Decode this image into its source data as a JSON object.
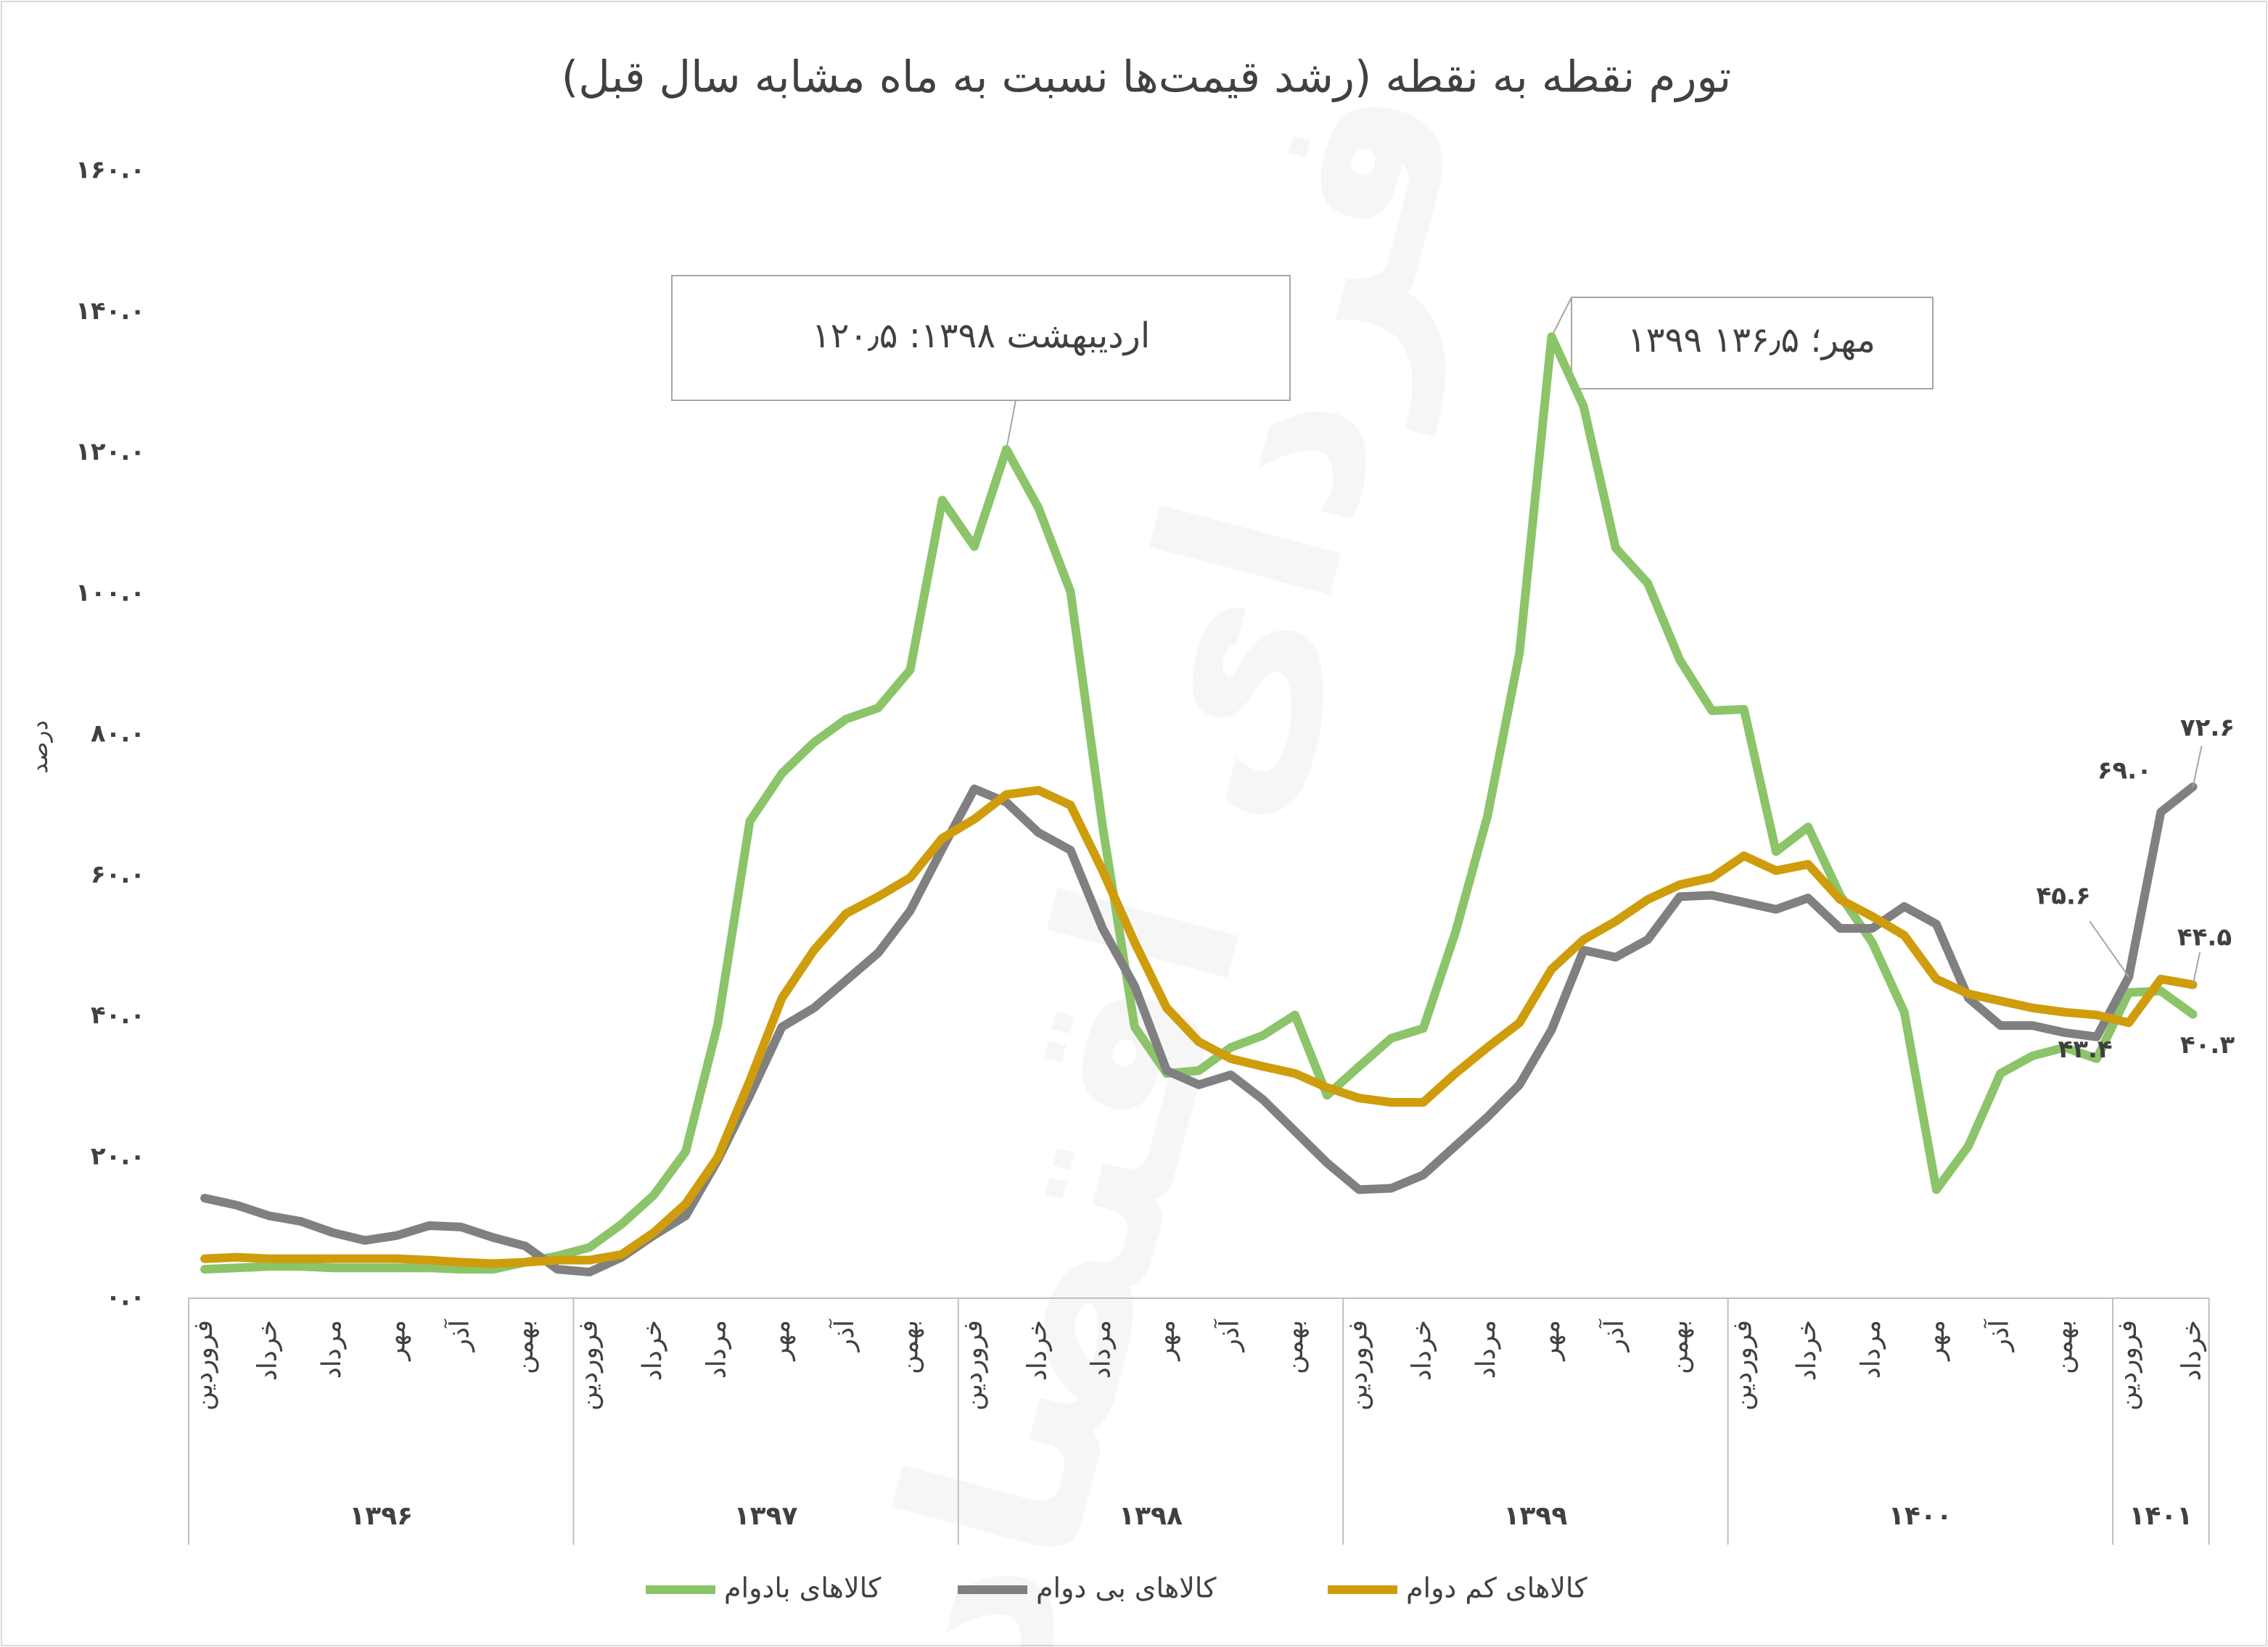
{
  "chart_data": {
    "type": "line",
    "title": "تورم نقطه به نقطه (رشد قیمت‌ها نسبت به ماه مشابه سال قبل)",
    "y_label": "درصد",
    "watermark": "فردای اقتصاد",
    "ylim": [
      0,
      160
    ],
    "yticks": [
      {
        "value": 0,
        "label": "۰.۰"
      },
      {
        "value": 20,
        "label": "۲۰.۰"
      },
      {
        "value": 40,
        "label": "۴۰.۰"
      },
      {
        "value": 60,
        "label": "۶۰.۰"
      },
      {
        "value": 80,
        "label": "۸۰.۰"
      },
      {
        "value": 100,
        "label": "۱۰۰.۰"
      },
      {
        "value": 120,
        "label": "۱۲۰.۰"
      },
      {
        "value": 140,
        "label": "۱۴۰.۰"
      },
      {
        "value": 160,
        "label": "۱۶۰.۰"
      }
    ],
    "grid": false,
    "legend": "bottom",
    "years": [
      "۱۳۹۶",
      "۱۳۹۷",
      "۱۳۹۸",
      "۱۳۹۹",
      "۱۴۰۰",
      "۱۴۰۱"
    ],
    "categories": [
      "فروردین",
      null,
      "خرداد",
      null,
      "مرداد",
      null,
      "مهر",
      null,
      "آذر",
      null,
      "بهمن",
      null,
      "فروردین",
      null,
      "خرداد",
      null,
      "مرداد",
      null,
      "مهر",
      null,
      "آذر",
      null,
      "بهمن",
      null,
      "فروردین",
      null,
      "خرداد",
      null,
      "مرداد",
      null,
      "مهر",
      null,
      "آذر",
      null,
      "بهمن",
      null,
      "فروردین",
      null,
      "خرداد",
      null,
      "مرداد",
      null,
      "مهر",
      null,
      "آذر",
      null,
      "بهمن",
      null,
      "فروردین",
      null,
      "خرداد",
      null,
      "مرداد",
      null,
      "مهر",
      null,
      "آذر",
      null,
      "بهمن",
      null,
      "فروردین",
      null,
      "خرداد"
    ],
    "series": [
      {
        "name": "کالاهای بادوام",
        "color": "#8cc46a",
        "values": [
          4.1,
          4.3,
          4.5,
          4.5,
          4.3,
          4.3,
          4.3,
          4.3,
          4.1,
          4.1,
          5.1,
          6.0,
          7.2,
          10.5,
          14.6,
          20.8,
          38.9,
          67.7,
          74.5,
          78.9,
          82.2,
          83.8,
          89.2,
          113.3,
          106.7,
          120.5,
          112.2,
          100.3,
          67.0,
          38.5,
          31.9,
          32.3,
          35.6,
          37.3,
          40.2,
          28.8,
          32.9,
          36.9,
          38.3,
          51.9,
          68.4,
          91.6,
          136.5,
          126.6,
          106.5,
          101.5,
          90.6,
          83.4,
          83.6,
          63.4,
          66.9,
          57.2,
          50.5,
          40.6,
          15.4,
          21.6,
          31.9,
          34.4,
          35.6,
          34.0,
          43.4,
          43.6,
          40.3
        ],
        "value_labels": [
          null,
          null,
          null,
          null,
          null,
          null,
          null,
          null,
          null,
          null,
          null,
          null,
          null,
          null,
          null,
          null,
          null,
          null,
          null,
          null,
          null,
          null,
          null,
          null,
          null,
          null,
          null,
          null,
          null,
          null,
          null,
          null,
          null,
          null,
          null,
          null,
          null,
          null,
          null,
          null,
          null,
          null,
          null,
          null,
          null,
          null,
          null,
          null,
          null,
          null,
          null,
          null,
          null,
          null,
          null,
          null,
          null,
          null,
          null,
          null,
          "۴۳.۴",
          null,
          "۴۰.۳"
        ]
      },
      {
        "name": "کالاهای بی دوام",
        "color": "#808080",
        "values": [
          14.2,
          13.2,
          11.7,
          10.9,
          9.3,
          8.2,
          8.9,
          10.3,
          10.1,
          8.6,
          7.4,
          4.1,
          3.7,
          5.8,
          8.9,
          11.7,
          19.6,
          28.8,
          38.5,
          41.2,
          45.1,
          49.0,
          55.0,
          63.8,
          72.3,
          70.4,
          66.1,
          63.6,
          52.5,
          44.3,
          32.3,
          30.3,
          31.7,
          28.2,
          23.7,
          19.2,
          15.4,
          15.6,
          17.5,
          21.6,
          25.7,
          30.3,
          38.1,
          49.4,
          48.4,
          50.9,
          57.0,
          57.2,
          56.2,
          55.2,
          56.8,
          52.5,
          52.5,
          55.6,
          53.1,
          42.6,
          38.7,
          38.7,
          37.7,
          37.1,
          45.6,
          69.0,
          72.6
        ],
        "value_labels": [
          null,
          null,
          null,
          null,
          null,
          null,
          null,
          null,
          null,
          null,
          null,
          null,
          null,
          null,
          null,
          null,
          null,
          null,
          null,
          null,
          null,
          null,
          null,
          null,
          null,
          null,
          null,
          null,
          null,
          null,
          null,
          null,
          null,
          null,
          null,
          null,
          null,
          null,
          null,
          null,
          null,
          null,
          null,
          null,
          null,
          null,
          null,
          null,
          null,
          null,
          null,
          null,
          null,
          null,
          null,
          null,
          null,
          null,
          null,
          null,
          "۴۵.۶",
          "۶۹.۰",
          "۷۲.۶"
        ]
      },
      {
        "name": "کالاهای کم دوام",
        "color": "#cf9d0b",
        "values": [
          5.6,
          5.8,
          5.6,
          5.6,
          5.6,
          5.6,
          5.6,
          5.4,
          5.1,
          4.9,
          5.1,
          5.4,
          5.4,
          6.2,
          9.3,
          13.4,
          20.0,
          30.9,
          42.6,
          49.4,
          54.6,
          57.0,
          59.7,
          65.3,
          68.0,
          71.5,
          72.1,
          70.0,
          60.7,
          50.5,
          41.2,
          36.4,
          34.0,
          32.9,
          31.9,
          29.9,
          28.4,
          27.8,
          27.8,
          31.9,
          35.6,
          39.1,
          46.7,
          50.9,
          53.5,
          56.6,
          58.7,
          59.7,
          62.8,
          60.7,
          61.6,
          56.6,
          54.2,
          51.5,
          45.3,
          43.2,
          42.2,
          41.2,
          40.6,
          40.2,
          39.1,
          45.3,
          44.5
        ],
        "value_labels": [
          null,
          null,
          null,
          null,
          null,
          null,
          null,
          null,
          null,
          null,
          null,
          null,
          null,
          null,
          null,
          null,
          null,
          null,
          null,
          null,
          null,
          null,
          null,
          null,
          null,
          null,
          null,
          null,
          null,
          null,
          null,
          null,
          null,
          null,
          null,
          null,
          null,
          null,
          null,
          null,
          null,
          null,
          null,
          null,
          null,
          null,
          null,
          null,
          null,
          null,
          null,
          null,
          null,
          null,
          null,
          null,
          null,
          null,
          null,
          null,
          null,
          null,
          "۴۴.۵"
        ]
      }
    ],
    "annotations": [
      "اردیبهشت ۱۳۹۸: ۱۲۰٫۵",
      "۱۳۹۹ مهر؛ ۱۳۶٫۵"
    ]
  }
}
